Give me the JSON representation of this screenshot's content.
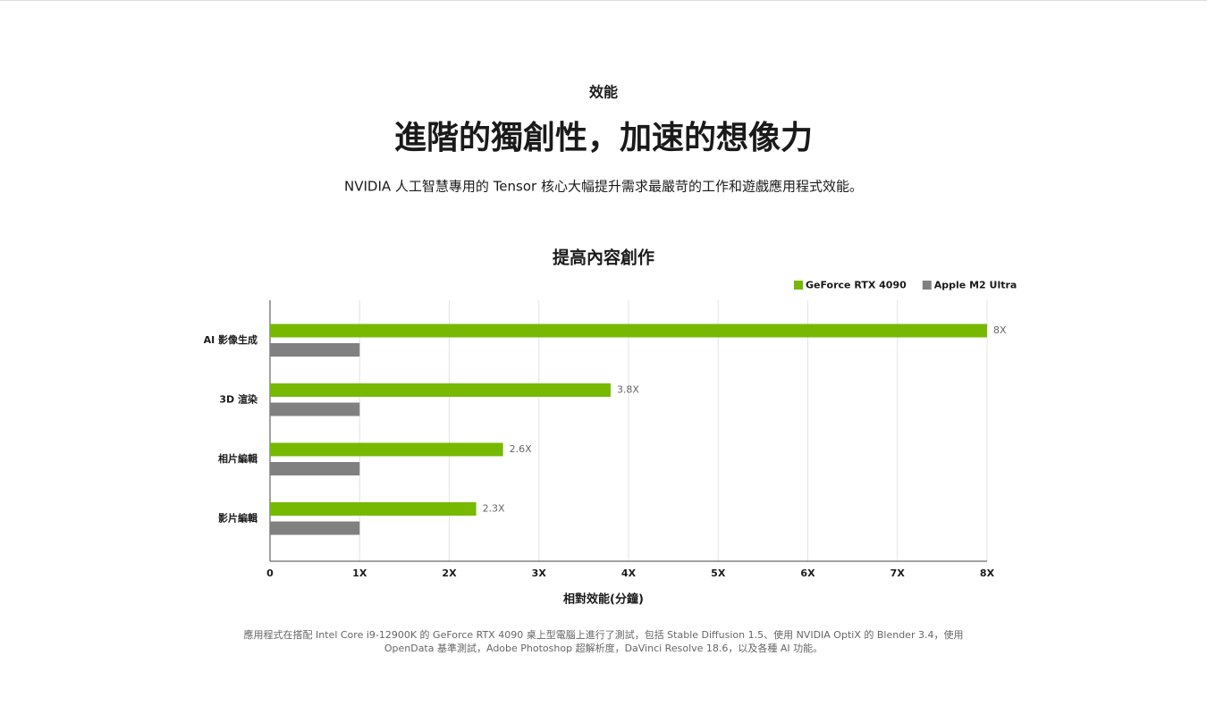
{
  "page": {
    "eyebrow": "效能",
    "title": "進階的獨創性，加速的想像力",
    "subtitle": "NVIDIA 人工智慧專用的 Tensor 核心大幅提升需求最嚴苛的工作和遊戲應用程式效能。",
    "footnote": [
      "應用程式在搭配 Intel Core i9-12900K 的 GeForce RTX 4090 桌上型電腦上進行了測試，包括 Stable Diffusion 1.5、使用 NVIDIA OptiX 的 Blender 3.4，使用",
      "OpenData 基準測試，Adobe Photoshop 超解析度，DaVinci Resolve 18.6，以及各種 AI 功能。"
    ]
  },
  "chart_data": {
    "type": "hbar",
    "title": "提高內容創作",
    "x_label": "相對效能(分鐘)",
    "categories": [
      "AI 影像生成",
      "3D 渲染",
      "相片編輯",
      "影片編輯"
    ],
    "series": [
      {
        "name": "GeForce RTX 4090",
        "color": "#76b900",
        "values": [
          8,
          3.8,
          2.6,
          2.3
        ],
        "value_labels": [
          "8X",
          "3.8X",
          "2.6X",
          "2.3X"
        ]
      },
      {
        "name": "Apple M2 Ultra",
        "color": "#808080",
        "values": [
          1,
          1,
          1,
          1
        ]
      }
    ],
    "xlim": [
      0,
      8
    ],
    "xticks": [
      0,
      {
        "value": 1,
        "label": "1X"
      },
      {
        "value": 2,
        "label": "2X"
      },
      {
        "value": 3,
        "label": "3X"
      },
      {
        "value": 4,
        "label": "4X"
      },
      {
        "value": 5,
        "label": "5X"
      },
      {
        "value": 6,
        "label": "6X"
      },
      {
        "value": 7,
        "label": "7X"
      },
      {
        "value": 8,
        "label": "8X"
      }
    ],
    "grid": true,
    "legend": "top-right"
  }
}
